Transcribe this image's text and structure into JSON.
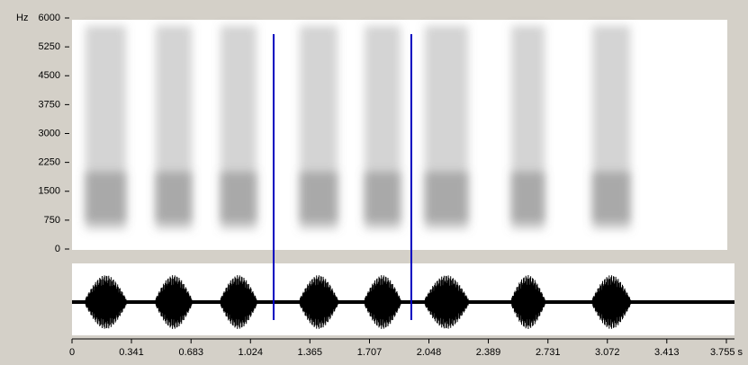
{
  "chart_data": {
    "type": "spectrogram",
    "y_label": "Hz",
    "ylim": [
      0,
      6000
    ],
    "yticks": [
      0,
      750,
      1500,
      2250,
      3000,
      3750,
      4500,
      5250,
      6000
    ],
    "xlim": [
      0,
      3.755
    ],
    "xticks": [
      0,
      0.341,
      0.683,
      1.024,
      1.365,
      1.707,
      2.048,
      2.389,
      2.731,
      3.072,
      3.413,
      {
        "value": 3.755,
        "label": "3.755 s"
      }
    ],
    "cursors": [
      1.157,
      1.947
    ],
    "cursor_color": "#0000c0",
    "segments": [
      {
        "start": 0.077,
        "end": 0.31
      },
      {
        "start": 0.48,
        "end": 0.687
      },
      {
        "start": 0.852,
        "end": 1.059
      },
      {
        "start": 1.307,
        "end": 1.524
      },
      {
        "start": 1.679,
        "end": 1.885
      },
      {
        "start": 2.025,
        "end": 2.273
      },
      {
        "start": 2.521,
        "end": 2.712
      },
      {
        "start": 2.986,
        "end": 3.203
      }
    ],
    "color": "#808080"
  }
}
